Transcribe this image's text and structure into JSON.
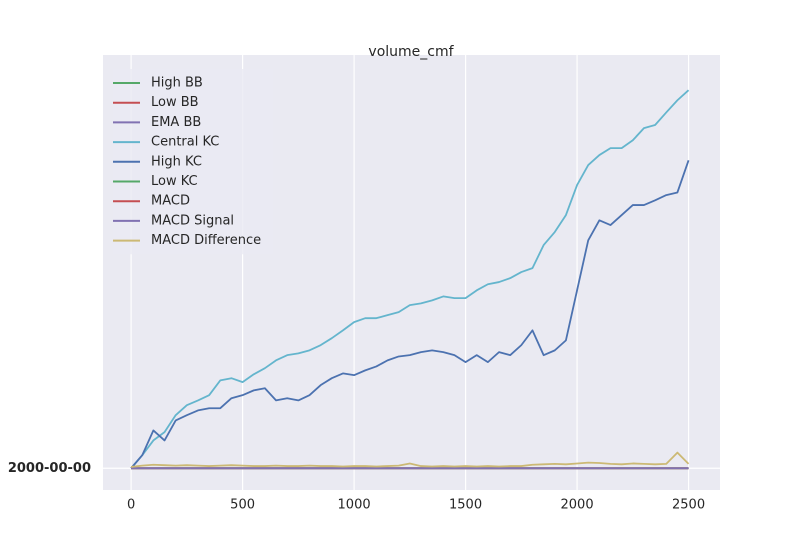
{
  "chart_data": {
    "type": "line",
    "title": "volume_cmf",
    "x": [
      0,
      50,
      100,
      150,
      200,
      250,
      300,
      350,
      400,
      450,
      500,
      550,
      600,
      650,
      700,
      750,
      800,
      850,
      900,
      950,
      1000,
      1050,
      1100,
      1150,
      1200,
      1250,
      1300,
      1350,
      1400,
      1450,
      1500,
      1550,
      1600,
      1650,
      1700,
      1750,
      1800,
      1850,
      1900,
      1950,
      2000,
      2050,
      2100,
      2150,
      2200,
      2250,
      2300,
      2350,
      2400,
      2450,
      2500
    ],
    "series": [
      {
        "name": "High BB",
        "color": "#55a868",
        "values": [
          0,
          0,
          0,
          0,
          0,
          0,
          0,
          0,
          0,
          0,
          0,
          0,
          0,
          0,
          0,
          0,
          0,
          0,
          0,
          0,
          0,
          0,
          0,
          0,
          0,
          0,
          0,
          0,
          0,
          0,
          0,
          0,
          0,
          0,
          0,
          0,
          0,
          0,
          0,
          0,
          0,
          0,
          0,
          0,
          0,
          0,
          0,
          0,
          0,
          0,
          0
        ]
      },
      {
        "name": "Low BB",
        "color": "#c44e52",
        "values": [
          0,
          0,
          0,
          0,
          0,
          0,
          0,
          0,
          0,
          0,
          0,
          0,
          0,
          0,
          0,
          0,
          0,
          0,
          0,
          0,
          0,
          0,
          0,
          0,
          0,
          0,
          0,
          0,
          0,
          0,
          0,
          0,
          0,
          0,
          0,
          0,
          0,
          0,
          0,
          0,
          0,
          0,
          0,
          0,
          0,
          0,
          0,
          0,
          0,
          0,
          0
        ]
      },
      {
        "name": "EMA BB",
        "color": "#8172b2",
        "values": [
          0,
          0,
          0,
          0,
          0,
          0,
          0,
          0,
          0,
          0,
          0,
          0,
          0,
          0,
          0,
          0,
          0,
          0,
          0,
          0,
          0,
          0,
          0,
          0,
          0,
          0,
          0,
          0,
          0,
          0,
          0,
          0,
          0,
          0,
          0,
          0,
          0,
          0,
          0,
          0,
          0,
          0,
          0,
          0,
          0,
          0,
          0,
          0,
          0,
          0,
          0
        ]
      },
      {
        "name": "Central KC",
        "color": "#64b5cd",
        "values": [
          0,
          3,
          6.4,
          8.3,
          12.2,
          14.5,
          15.6,
          16.8,
          20.2,
          20.7,
          19.8,
          21.6,
          23,
          24.8,
          26,
          26.4,
          27.1,
          28.3,
          29.9,
          31.7,
          33.6,
          34.5,
          34.5,
          35.2,
          35.9,
          37.5,
          37.9,
          38.6,
          39.5,
          39.1,
          39.1,
          40.9,
          42.3,
          42.8,
          43.7,
          45.1,
          46,
          51.3,
          54.3,
          58.2,
          65.1,
          69.7,
          72,
          73.6,
          73.6,
          75.4,
          78.2,
          78.9,
          81.8,
          84.6,
          86.9
        ]
      },
      {
        "name": "High KC",
        "color": "#4c72b0",
        "values": [
          0,
          3,
          8.7,
          6.4,
          11,
          12.2,
          13.3,
          13.8,
          13.8,
          16.1,
          16.8,
          17.9,
          18.4,
          15.6,
          16.1,
          15.6,
          16.8,
          19.1,
          20.7,
          21.8,
          21.4,
          22.5,
          23.4,
          24.8,
          25.7,
          26,
          26.7,
          27.1,
          26.7,
          26,
          24.4,
          26,
          24.4,
          26.7,
          26,
          28.3,
          31.7,
          26,
          27.1,
          29.4,
          40.9,
          52.4,
          57,
          55.9,
          58.2,
          60.5,
          60.5,
          61.6,
          62.8,
          63.4,
          70.8
        ]
      },
      {
        "name": "Low KC",
        "color": "#55a868",
        "values": [
          0,
          0,
          0,
          0,
          0,
          0,
          0,
          0,
          0,
          0,
          0,
          0,
          0,
          0,
          0,
          0,
          0,
          0,
          0,
          0,
          0,
          0,
          0,
          0,
          0,
          0,
          0,
          0,
          0,
          0,
          0,
          0,
          0,
          0,
          0,
          0,
          0,
          0,
          0,
          0,
          0,
          0,
          0,
          0,
          0,
          0,
          0,
          0,
          0,
          0,
          0
        ]
      },
      {
        "name": "MACD",
        "color": "#c44e52",
        "values": [
          0,
          0,
          0,
          0,
          0,
          0,
          0,
          0,
          0,
          0,
          0,
          0,
          0,
          0,
          0,
          0,
          0,
          0,
          0,
          0,
          0,
          0,
          0,
          0,
          0,
          0,
          0,
          0,
          0,
          0,
          0,
          0,
          0,
          0,
          0,
          0,
          0,
          0,
          0,
          0,
          0,
          0,
          0,
          0,
          0,
          0,
          0,
          0,
          0,
          0,
          0
        ]
      },
      {
        "name": "MACD Signal",
        "color": "#8172b2",
        "values": [
          0,
          0,
          0,
          0,
          0,
          0,
          0,
          0,
          0,
          0,
          0,
          0,
          0,
          0,
          0,
          0,
          0,
          0,
          0,
          0,
          0,
          0,
          0,
          0,
          0,
          0,
          0,
          0,
          0,
          0,
          0,
          0,
          0,
          0,
          0,
          0,
          0,
          0,
          0,
          0,
          0,
          0,
          0,
          0,
          0,
          0,
          0,
          0,
          0,
          0,
          0
        ]
      },
      {
        "name": "MACD Difference",
        "color": "#ccb974",
        "values": [
          0.3,
          0.6,
          0.8,
          0.7,
          0.6,
          0.7,
          0.6,
          0.5,
          0.6,
          0.7,
          0.6,
          0.5,
          0.5,
          0.6,
          0.5,
          0.5,
          0.6,
          0.5,
          0.5,
          0.4,
          0.5,
          0.5,
          0.4,
          0.5,
          0.6,
          1.1,
          0.5,
          0.4,
          0.5,
          0.4,
          0.5,
          0.4,
          0.5,
          0.4,
          0.5,
          0.5,
          0.8,
          0.9,
          1.0,
          0.9,
          1.1,
          1.3,
          1.2,
          1.0,
          0.9,
          1.1,
          1.0,
          0.9,
          1.0,
          3.6,
          1.0
        ]
      }
    ],
    "xlim": [
      -126,
      2641
    ],
    "xticks": [
      0,
      500,
      1000,
      1500,
      2000,
      2500
    ],
    "ylim": [
      -5,
      95
    ],
    "yticks": [
      {
        "value": 0,
        "label": "2000-00-00"
      }
    ],
    "grid": true,
    "legend": "upper left"
  }
}
